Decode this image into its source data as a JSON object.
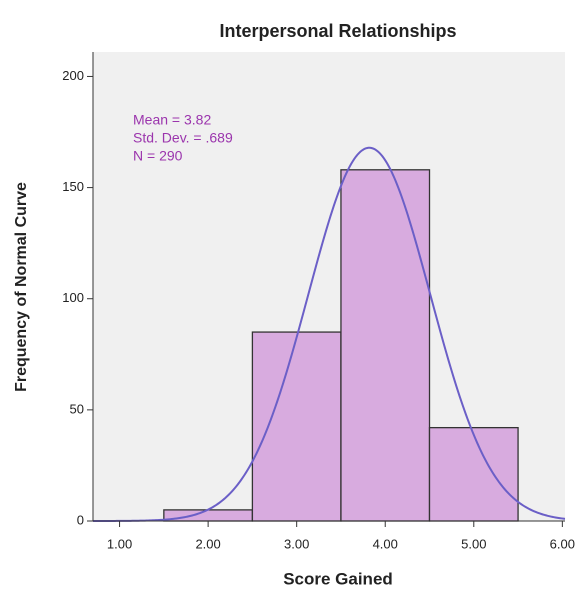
{
  "chart_data": {
    "type": "histogram",
    "title": "Interpersonal Relationships",
    "x_label": "Score Gained",
    "y_label": "Frequency of Normal Curve",
    "bins": [
      1.5,
      2.5,
      3.5,
      4.5,
      5.5
    ],
    "values": [
      5,
      85,
      158,
      42
    ],
    "color": "#d8abdf",
    "curve_color": "#6b5fc7",
    "stats": [
      {
        "label": "Mean = 3.82",
        "value": 3.82
      },
      {
        "label": "Std. Dev. = .689",
        "value": 0.689
      },
      {
        "label": "N = 290",
        "value": 290
      }
    ],
    "xlim": [
      0.7,
      6.03
    ],
    "ylim": [
      0,
      211
    ],
    "xticks": [
      {
        "value": 1,
        "label": "1.00"
      },
      {
        "value": 2,
        "label": "2.00"
      },
      {
        "value": 3,
        "label": "3.00"
      },
      {
        "value": 4,
        "label": "4.00"
      },
      {
        "value": 5,
        "label": "5.00"
      },
      {
        "value": 6,
        "label": "6.00"
      }
    ],
    "yticks": [
      0,
      50,
      100,
      150,
      200
    ]
  }
}
